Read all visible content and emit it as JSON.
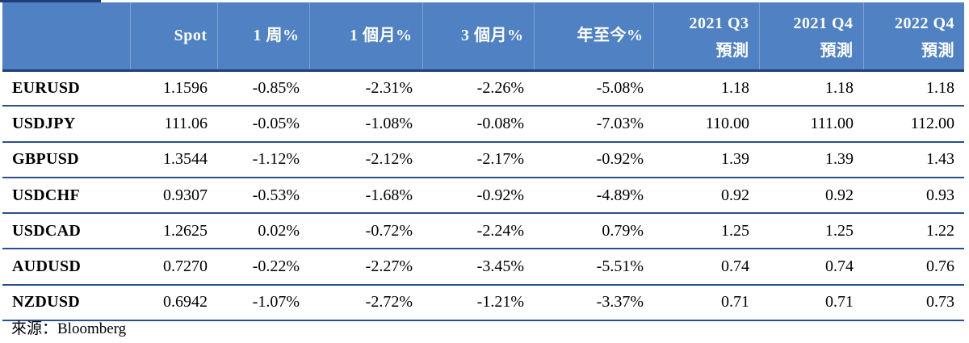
{
  "table": {
    "headers": [
      {
        "line1": "",
        "line2": ""
      },
      {
        "line1": "Spot",
        "line2": ""
      },
      {
        "line1": "1 周%",
        "line2": ""
      },
      {
        "line1": "1 個月%",
        "line2": ""
      },
      {
        "line1": "3 個月%",
        "line2": ""
      },
      {
        "line1": "年至今%",
        "line2": ""
      },
      {
        "line1": "2021 Q3",
        "line2": "預測"
      },
      {
        "line1": "2021 Q4",
        "line2": "預測"
      },
      {
        "line1": "2022 Q4",
        "line2": "預測"
      }
    ],
    "rows": [
      [
        "EURUSD",
        "1.1596",
        "-0.85%",
        "-2.31%",
        "-2.26%",
        "-5.08%",
        "1.18",
        "1.18",
        "1.18"
      ],
      [
        "USDJPY",
        "111.06",
        "-0.05%",
        "-1.08%",
        "-0.08%",
        "-7.03%",
        "110.00",
        "111.00",
        "112.00"
      ],
      [
        "GBPUSD",
        "1.3544",
        "-1.12%",
        "-2.12%",
        "-2.17%",
        "-0.92%",
        "1.39",
        "1.39",
        "1.43"
      ],
      [
        "USDCHF",
        "0.9307",
        "-0.53%",
        "-1.68%",
        "-0.92%",
        "-4.89%",
        "0.92",
        "0.92",
        "0.93"
      ],
      [
        "USDCAD",
        "1.2625",
        "0.02%",
        "-0.72%",
        "-2.24%",
        "0.79%",
        "1.25",
        "1.25",
        "1.22"
      ],
      [
        "AUDUSD",
        "0.7270",
        "-0.22%",
        "-2.27%",
        "-3.45%",
        "-5.51%",
        "0.74",
        "0.74",
        "0.76"
      ],
      [
        "NZDUSD",
        "0.6942",
        "-1.07%",
        "-2.72%",
        "-1.21%",
        "-3.37%",
        "0.71",
        "0.71",
        "0.73"
      ]
    ]
  },
  "source": "來源：Bloomberg",
  "colors": {
    "header_bg": "#4f81c3",
    "header_text": "#ffffff",
    "row_rule": "#2b4f8f"
  }
}
